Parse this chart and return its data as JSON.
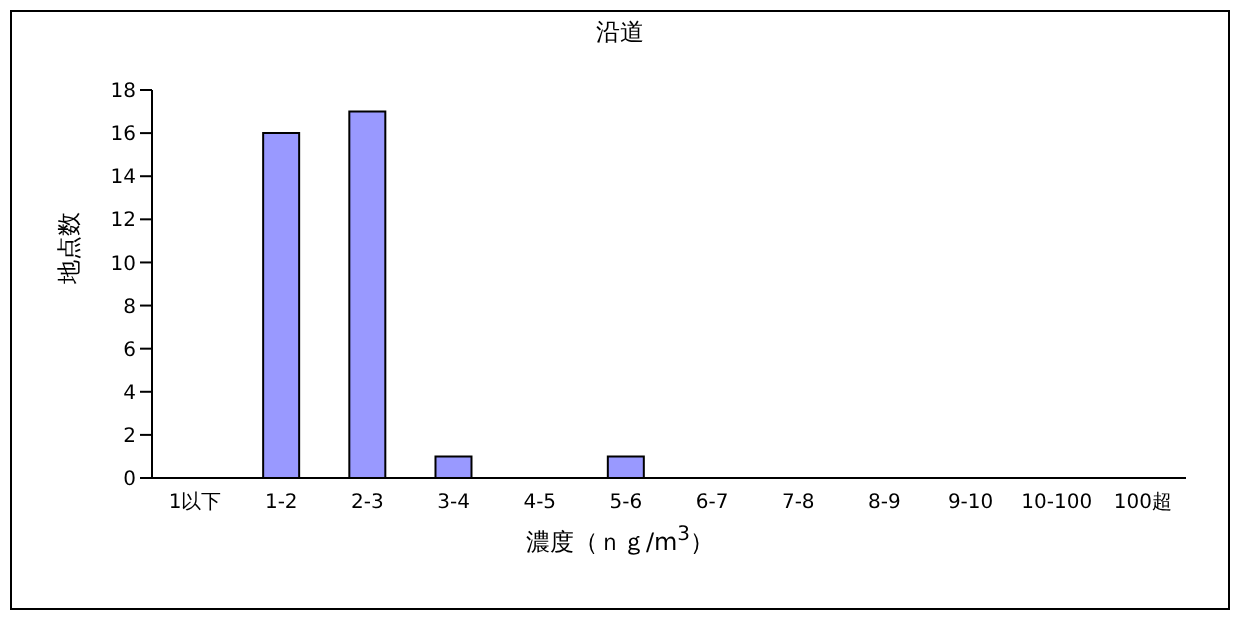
{
  "chart_data": {
    "type": "bar",
    "title": "沿道",
    "xlabel": "濃度（ｎｇ/m$^{3}$）",
    "ylabel": "地点数",
    "categories": [
      "1以下",
      "1-2",
      "2-3",
      "3-4",
      "4-5",
      "5-6",
      "6-7",
      "7-8",
      "8-9",
      "9-10",
      "10-100",
      "100超"
    ],
    "values": [
      0,
      16,
      17,
      1,
      0,
      1,
      0,
      0,
      0,
      0,
      0,
      0
    ],
    "color": "#9999ff",
    "ylim": [
      0,
      18
    ],
    "yticks": [
      0,
      2,
      4,
      6,
      8,
      10,
      12,
      14,
      16,
      18
    ]
  }
}
